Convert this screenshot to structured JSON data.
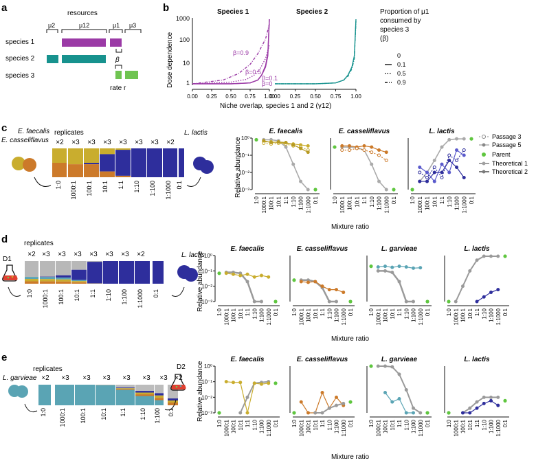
{
  "colors": {
    "faecalis": "#c9ad2e",
    "cassel": "#cc7a2a",
    "lactis": "#2e2e9c",
    "garvieae": "#5aa4b4",
    "species1": "#9b3aa6",
    "species2": "#17928e",
    "species3": "#6fc451",
    "parent": "#5fc63f",
    "theory1": "#a0a0a0",
    "theory2": "#7a7a7a"
  },
  "panel_a": {
    "label": "a",
    "resources_label": "resources",
    "mu2": "μ2",
    "mu12": "μ12",
    "mu1": "μ1",
    "mu3": "μ3",
    "species": [
      "species 1",
      "species 2",
      "species 3"
    ],
    "beta": "β",
    "rate": "rate r"
  },
  "panel_b": {
    "label": "b",
    "title1": "Species 1",
    "title2": "Species 2",
    "ylabel": "Dose dependence",
    "xlabel": "Niche overlap, species 1 and 2 (γ12)",
    "yticks": [
      "1",
      "10",
      "100",
      "1000"
    ],
    "xticks": [
      "0.00",
      "0.25",
      "0.50",
      "0.75",
      "1.00"
    ],
    "legend_title": [
      "Proportion of μ1",
      "consumed by",
      "species 3",
      "(β)"
    ],
    "legend_items": [
      "0",
      "0.1",
      "0.5",
      "0.9"
    ],
    "curve_labels": [
      "β=0.9",
      "β=0.5",
      "β=0.1",
      "β=0"
    ]
  },
  "panel_c": {
    "label": "c",
    "left_species": [
      "E. faecalis",
      "E. casseliflavus"
    ],
    "right_species": "L. lactis",
    "replicates_label": "replicates",
    "reps": [
      "×2",
      "×3",
      "×3",
      "×3",
      "×3",
      "×3",
      "×3",
      "×2"
    ],
    "ratios": [
      "1:0",
      "1000:1",
      "100:1",
      "10:1",
      "1:1",
      "1:10",
      "1:100",
      "1:1000",
      "0:1"
    ],
    "titles": [
      "E. faecalis",
      "E. casseliflavus",
      "L. lactis"
    ],
    "ylabel": "Relative abundance",
    "xlabel": "Mixture ratio",
    "yticks": [
      "10⁰",
      "10⁻¹",
      "10⁻²",
      "10⁻³"
    ],
    "legend": [
      "Passage 3",
      "Passage 5",
      "Parent",
      "Theoretical 1",
      "Theoretical 2"
    ]
  },
  "panel_d": {
    "label": "d",
    "left_label": "D1",
    "right_species": "L. lactis",
    "replicates_label": "replicates",
    "reps": [
      "×2",
      "×3",
      "×3",
      "×3",
      "×3",
      "×3",
      "×3",
      "×2"
    ],
    "ratios": [
      "1:0",
      "1000:1",
      "100:1",
      "10:1",
      "1:1",
      "1:10",
      "1:100",
      "1:1000",
      "0:1"
    ],
    "titles": [
      "E. faecalis",
      "E. casseliflavus",
      "L. garvieae",
      "L. lactis"
    ],
    "ylabel": "Relative abundance",
    "xlabel": "Mixture ratio",
    "yticks": [
      "10⁰",
      "10⁻¹",
      "10⁻²",
      "10⁻³"
    ]
  },
  "panel_e": {
    "label": "e",
    "left_species": "L. garvieae",
    "right_label": "D2",
    "replicates_label": "replicates",
    "reps": [
      "×2",
      "×3",
      "×3",
      "×3",
      "×3",
      "×3",
      "×3",
      "×2"
    ],
    "ratios": [
      "1:0",
      "1000:1",
      "100:1",
      "10:1",
      "1:1",
      "1:10",
      "1:100",
      "1:1000",
      "0:1"
    ],
    "titles": [
      "E. faecalis",
      "E. casseliflavus",
      "L. garvieae",
      "L. lactis"
    ],
    "ylabel": "Relative abundance",
    "xlabel": "Mixture ratio",
    "yticks": [
      "10⁰",
      "10⁻¹",
      "10⁻²",
      "10⁻³"
    ]
  },
  "chart_data": [
    {
      "type": "line",
      "title": "Species 1 dose dependence",
      "xlabel": "Niche overlap, species 1 and 2 (γ12)",
      "ylabel": "Dose dependence",
      "xlim": [
        0,
        1
      ],
      "ylim": [
        1,
        1000
      ],
      "yscale": "log",
      "series": [
        {
          "name": "β=0",
          "x": [
            0,
            0.5,
            0.75,
            0.85,
            0.9,
            0.95,
            0.98,
            1.0
          ],
          "values": [
            1,
            1,
            1.1,
            1.5,
            2.5,
            6,
            20,
            1000
          ]
        },
        {
          "name": "β=0.1",
          "x": [
            0,
            0.5,
            0.75,
            0.85,
            0.9,
            0.95,
            0.98,
            1.0
          ],
          "values": [
            1,
            1,
            1.1,
            1.5,
            2.6,
            7,
            25,
            1000
          ]
        },
        {
          "name": "β=0.5",
          "x": [
            0,
            0.5,
            0.7,
            0.8,
            0.88,
            0.95,
            1.0
          ],
          "values": [
            1,
            1.2,
            1.6,
            2.5,
            5,
            15,
            60
          ]
        },
        {
          "name": "β=0.9",
          "x": [
            0,
            0.4,
            0.6,
            0.75,
            0.85,
            0.95,
            1.0
          ],
          "values": [
            1,
            1.5,
            3,
            8,
            25,
            120,
            600
          ]
        }
      ]
    },
    {
      "type": "line",
      "title": "Species 2 dose dependence",
      "xlim": [
        0,
        1
      ],
      "ylim": [
        1,
        1000
      ],
      "yscale": "log",
      "series": [
        {
          "name": "β=0",
          "x": [
            0,
            0.5,
            0.75,
            0.85,
            0.9,
            0.95,
            0.98,
            1.0
          ],
          "values": [
            1,
            1,
            1.1,
            1.5,
            2.5,
            6,
            20,
            1000
          ]
        },
        {
          "name": "β=0.9",
          "x": [
            0,
            0.5,
            0.75,
            0.85,
            0.9,
            0.95,
            0.98,
            1.0
          ],
          "values": [
            1,
            1,
            1.1,
            1.5,
            2.2,
            5,
            15,
            800
          ]
        }
      ]
    },
    {
      "type": "line",
      "title": "c: E. faecalis",
      "yscale": "log",
      "categories": [
        "1:0",
        "1000:1",
        "100:1",
        "10:1",
        "1:1",
        "1:10",
        "1:100",
        "1:1000",
        "0:1"
      ],
      "series": [
        {
          "name": "Passage 5",
          "values": [
            null,
            0.6,
            0.6,
            0.55,
            0.5,
            0.45,
            0.4,
            0.35,
            null
          ]
        },
        {
          "name": "Passage 3",
          "values": [
            null,
            0.5,
            0.5,
            0.45,
            0.4,
            0.35,
            0.3,
            0.2,
            null
          ]
        },
        {
          "name": "Theoretical 2",
          "values": [
            null,
            0.8,
            0.8,
            0.7,
            0.3,
            0.03,
            0.001,
            null,
            null
          ]
        },
        {
          "name": "Parent",
          "values": [
            0.8,
            null,
            null,
            null,
            null,
            null,
            null,
            null,
            null
          ]
        }
      ]
    },
    {
      "type": "line",
      "title": "c: E. casseliflavus",
      "yscale": "log",
      "categories": [
        "1:0",
        "1000:1",
        "100:1",
        "10:1",
        "1:1",
        "1:10",
        "1:100",
        "1:1000",
        "0:1"
      ],
      "series": [
        {
          "name": "Passage 5",
          "values": [
            null,
            0.35,
            0.35,
            0.3,
            0.35,
            0.3,
            0.2,
            0.15,
            null
          ]
        },
        {
          "name": "Theoretical 2",
          "values": [
            null,
            0.3,
            0.3,
            0.28,
            0.2,
            0.03,
            0.003,
            0.001,
            null
          ]
        }
      ]
    },
    {
      "type": "line",
      "title": "c: L. lactis",
      "yscale": "log",
      "categories": [
        "1:0",
        "1000:1",
        "100:1",
        "10:1",
        "1:1",
        "1:10",
        "1:100",
        "1:1000",
        "0:1"
      ],
      "series": [
        {
          "name": "Passage 5",
          "values": [
            null,
            0.003,
            0.003,
            0.01,
            0.01,
            0.05,
            0.02,
            0.005,
            null
          ]
        },
        {
          "name": "Theoretical 2",
          "values": [
            null,
            0.003,
            0.01,
            0.05,
            0.3,
            0.8,
            0.9,
            0.9,
            null
          ]
        }
      ]
    },
    {
      "type": "line",
      "title": "d: L. lactis",
      "yscale": "log",
      "categories": [
        "1:0",
        "1000:1",
        "100:1",
        "10:1",
        "1:1",
        "1:10",
        "1:100",
        "1:1000",
        "0:1"
      ],
      "series": [
        {
          "name": "Theoretical 2",
          "values": [
            null,
            0.001,
            0.01,
            0.1,
            0.5,
            0.9,
            0.9,
            0.9,
            null
          ]
        },
        {
          "name": "Passage 5",
          "values": [
            null,
            null,
            null,
            null,
            0.001,
            0.002,
            0.004,
            0.006,
            null
          ]
        }
      ]
    },
    {
      "type": "line",
      "title": "e: L. garvieae",
      "yscale": "log",
      "categories": [
        "1:0",
        "1000:1",
        "100:1",
        "10:1",
        "1:1",
        "1:10",
        "1:100",
        "1:1000",
        "0:1"
      ],
      "series": [
        {
          "name": "Theoretical 2",
          "values": [
            null,
            1,
            1,
            0.9,
            0.3,
            0.03,
            0.002,
            0.001,
            null
          ]
        },
        {
          "name": "Passage 5",
          "values": [
            null,
            null,
            0.02,
            0.005,
            0.008,
            0.001,
            0.001,
            null,
            null
          ]
        }
      ]
    }
  ]
}
